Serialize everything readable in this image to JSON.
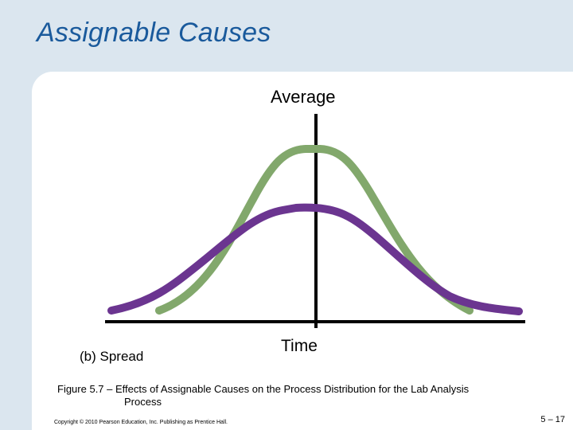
{
  "slide": {
    "title": "Assignable Causes",
    "average_label": "Average",
    "time_label": "Time",
    "panel_label": "(b) Spread",
    "caption_number": "Figure 5.7 – ",
    "caption_line1": "Effects of Assignable Causes on the Process Distribution for the Lab Analysis",
    "caption_line2": "Process",
    "copyright": "Copyright © 2010 Pearson Education, Inc. Publishing as Prentice Hall.",
    "page_number": "5 – 17"
  },
  "colors": {
    "background": "#dbe6ef",
    "title": "#1a5a9c",
    "narrow_curve": "#82a86c",
    "wide_curve": "#6b3590",
    "axis": "#000000"
  },
  "diagram": {
    "curves": [
      {
        "name": "narrow-distribution",
        "shape": "bell",
        "relative_spread": "narrow",
        "color_key": "narrow_curve"
      },
      {
        "name": "wide-distribution",
        "shape": "bell",
        "relative_spread": "wide",
        "color_key": "wide_curve"
      }
    ]
  }
}
